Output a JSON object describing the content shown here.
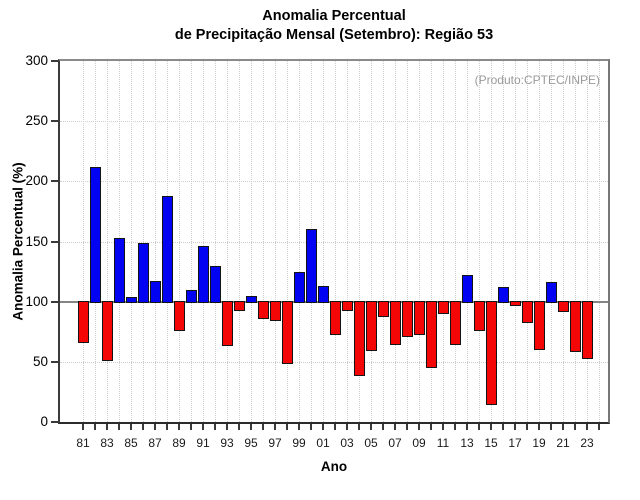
{
  "chart_data": {
    "type": "bar",
    "title_line1": "Anomalia Percentual",
    "title_line2": "de Precipitação Mensal (Setembro): Região 53",
    "xlabel": "Ano",
    "ylabel": "Anomalia Percentual (%)",
    "annotation": "(Produto:CPTEC/INPE)",
    "ylim": [
      0,
      300
    ],
    "yticks": [
      0,
      50,
      100,
      150,
      200,
      250,
      300
    ],
    "hgrid_values": [
      50,
      150,
      200,
      250
    ],
    "baseline_value": 100,
    "legend": "none",
    "grid": "dotted",
    "years": [
      1981,
      1982,
      1983,
      1984,
      1985,
      1986,
      1987,
      1988,
      1989,
      1990,
      1991,
      1992,
      1993,
      1994,
      1995,
      1996,
      1997,
      1998,
      1999,
      2000,
      2001,
      2002,
      2003,
      2004,
      2005,
      2006,
      2007,
      2008,
      2009,
      2010,
      2011,
      2012,
      2013,
      2014,
      2015,
      2016,
      2017,
      2018,
      2019,
      2020,
      2021,
      2022,
      2023
    ],
    "values": [
      66,
      212,
      51,
      153,
      104,
      149,
      117,
      188,
      76,
      110,
      146,
      130,
      63,
      92,
      105,
      86,
      84,
      48,
      125,
      160,
      113,
      72,
      92,
      38,
      59,
      87,
      64,
      71,
      72,
      45,
      90,
      64,
      122,
      76,
      14,
      112,
      96,
      82,
      60,
      116,
      91,
      58,
      52
    ],
    "xtick_years": [
      1981,
      1982,
      1983,
      1984,
      1985,
      1986,
      1987,
      1988,
      1989,
      1990,
      1991,
      1992,
      1993,
      1994,
      1995,
      1996,
      1997,
      1998,
      1999,
      2000,
      2001,
      2002,
      2003,
      2004,
      2005,
      2006,
      2007,
      2008,
      2009,
      2010,
      2011,
      2012,
      2013,
      2014,
      2015,
      2016,
      2017,
      2018,
      2019,
      2020,
      2021,
      2022,
      2023,
      2024
    ],
    "xtick_labels": [
      "81",
      "83",
      "85",
      "87",
      "89",
      "91",
      "93",
      "95",
      "97",
      "99",
      "01",
      "03",
      "05",
      "07",
      "09",
      "11",
      "13",
      "15",
      "17",
      "19",
      "21",
      "23"
    ],
    "colors": {
      "above_baseline": "#0202f2",
      "below_baseline": "#f40606",
      "bar_border": "#141414",
      "baseline_line": "#858585",
      "grid": "#cfcfcf",
      "annotation": "#9a9a9a"
    }
  }
}
